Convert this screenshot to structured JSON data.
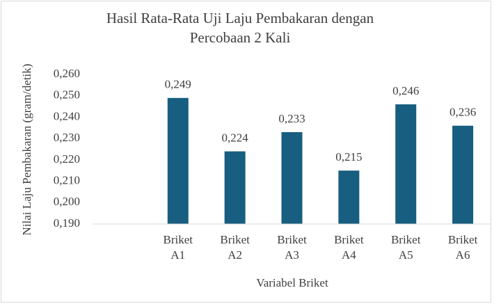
{
  "chart_data": {
    "type": "bar",
    "title": "Hasil Rata-Rata Uji Laju Pembakaran dengan Percobaan 2 Kali",
    "x_label": "Variabel Briket",
    "y_label": "Nilai Laju Pembakaran (gram/detik)",
    "categories": [
      null,
      "Briket A1",
      "Briket A2",
      "Briket A3",
      "Briket A4",
      "Briket A5",
      "Briket A6"
    ],
    "values": [
      null,
      0.249,
      0.224,
      0.233,
      0.215,
      0.246,
      0.236
    ],
    "value_labels": [
      null,
      "0,249",
      "0,224",
      "0,233",
      "0,215",
      "0,246",
      "0,236"
    ],
    "color": "#175e80",
    "ylim": [
      0.19,
      0.26
    ],
    "yticks": [
      {
        "value": 0.19,
        "label": "0,190"
      },
      {
        "value": 0.2,
        "label": "0,200"
      },
      {
        "value": 0.21,
        "label": "0,210"
      },
      {
        "value": 0.22,
        "label": "0,220"
      },
      {
        "value": 0.23,
        "label": "0,230"
      },
      {
        "value": 0.24,
        "label": "0,240"
      },
      {
        "value": 0.25,
        "label": "0,250"
      },
      {
        "value": 0.26,
        "label": "0,260"
      }
    ],
    "grid": false
  }
}
